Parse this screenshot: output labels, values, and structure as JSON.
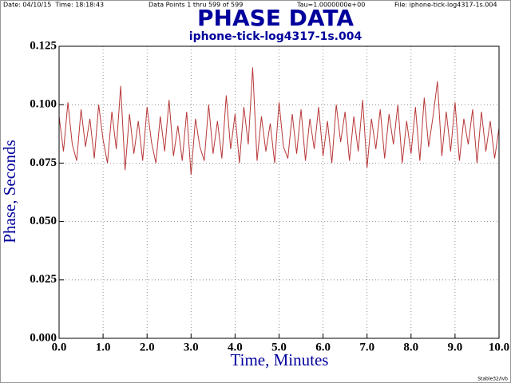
{
  "chart_data": {
    "type": "line",
    "date_time": "Date: 04/10/15  Time: 18:18:43",
    "points_info": "Data Points 1 thru 599 of 599",
    "tau": "Tau=1.0000000e+00",
    "file": "File: iphone-tick-log4317-1s.004",
    "title": "PHASE DATA",
    "subtitle": "iphone-tick-log4317-1s.004",
    "xlabel": "Time, Minutes",
    "ylabel": "Phase, Seconds",
    "footer": "Stable32/Ivb",
    "color": "#b83838",
    "grid": true,
    "xlim": [
      0,
      10
    ],
    "ylim": [
      0,
      0.125
    ],
    "xticks": [
      {
        "value": 0,
        "label": "0.0"
      },
      {
        "value": 1,
        "label": "1.0"
      },
      {
        "value": 2,
        "label": "2.0"
      },
      {
        "value": 3,
        "label": "3.0"
      },
      {
        "value": 4,
        "label": "4.0"
      },
      {
        "value": 5,
        "label": "5.0"
      },
      {
        "value": 6,
        "label": "6.0"
      },
      {
        "value": 7,
        "label": "7.0"
      },
      {
        "value": 8,
        "label": "8.0"
      },
      {
        "value": 9,
        "label": "9.0"
      },
      {
        "value": 10,
        "label": "10.0"
      }
    ],
    "yticks": [
      {
        "value": 0,
        "label": "0.000"
      },
      {
        "value": 0.025,
        "label": "0.025"
      },
      {
        "value": 0.05,
        "label": "0.050"
      },
      {
        "value": 0.075,
        "label": "0.075"
      },
      {
        "value": 0.1,
        "label": "0.100"
      },
      {
        "value": 0.125,
        "label": "0.125"
      }
    ],
    "x": [
      0,
      0.1,
      0.2,
      0.3,
      0.4,
      0.5,
      0.6,
      0.7,
      0.8,
      0.9,
      1,
      1.1,
      1.2,
      1.3,
      1.4,
      1.5,
      1.6,
      1.7,
      1.8,
      1.9,
      2,
      2.1,
      2.2,
      2.3,
      2.4,
      2.5,
      2.6,
      2.7,
      2.8,
      2.9,
      3,
      3.1,
      3.2,
      3.3,
      3.4,
      3.5,
      3.6,
      3.7,
      3.8,
      3.9,
      4,
      4.1,
      4.2,
      4.3,
      4.4,
      4.5,
      4.6,
      4.7,
      4.8,
      4.9,
      5,
      5.1,
      5.2,
      5.3,
      5.4,
      5.5,
      5.6,
      5.7,
      5.8,
      5.9,
      6,
      6.1,
      6.2,
      6.3,
      6.4,
      6.5,
      6.6,
      6.7,
      6.8,
      6.9,
      7,
      7.1,
      7.2,
      7.3,
      7.4,
      7.5,
      7.6,
      7.7,
      7.8,
      7.9,
      8,
      8.1,
      8.2,
      8.3,
      8.4,
      8.5,
      8.6,
      8.7,
      8.8,
      8.9,
      9,
      9.1,
      9.2,
      9.3,
      9.4,
      9.5,
      9.6,
      9.7,
      9.8,
      9.9,
      10
    ],
    "values": [
      0.095,
      0.08,
      0.101,
      0.083,
      0.076,
      0.098,
      0.082,
      0.094,
      0.077,
      0.1,
      0.085,
      0.075,
      0.097,
      0.081,
      0.108,
      0.072,
      0.096,
      0.079,
      0.093,
      0.076,
      0.099,
      0.084,
      0.075,
      0.095,
      0.08,
      0.102,
      0.078,
      0.091,
      0.076,
      0.097,
      0.07,
      0.094,
      0.082,
      0.076,
      0.1,
      0.079,
      0.093,
      0.077,
      0.104,
      0.081,
      0.096,
      0.075,
      0.099,
      0.083,
      0.116,
      0.076,
      0.095,
      0.08,
      0.092,
      0.075,
      0.101,
      0.082,
      0.077,
      0.096,
      0.079,
      0.098,
      0.076,
      0.094,
      0.081,
      0.099,
      0.078,
      0.093,
      0.075,
      0.1,
      0.084,
      0.097,
      0.076,
      0.095,
      0.08,
      0.102,
      0.073,
      0.094,
      0.081,
      0.098,
      0.077,
      0.096,
      0.083,
      0.1,
      0.075,
      0.093,
      0.079,
      0.099,
      0.076,
      0.103,
      0.082,
      0.095,
      0.11,
      0.078,
      0.097,
      0.08,
      0.101,
      0.076,
      0.094,
      0.083,
      0.098,
      0.075,
      0.097,
      0.08,
      0.093,
      0.077,
      0.09
    ]
  }
}
